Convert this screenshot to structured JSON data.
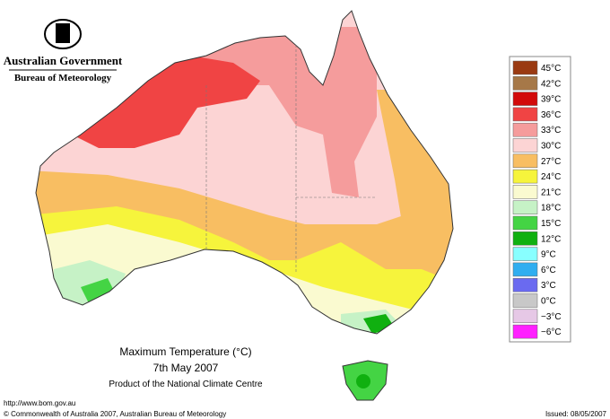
{
  "header": {
    "government": "Australian Government",
    "bureau": "Bureau of Meteorology"
  },
  "map": {
    "title": "Maximum Temperature (°C)",
    "date": "7th May 2007",
    "product": "Product of the National Climate Centre"
  },
  "legend": {
    "items": [
      {
        "label": "45°C",
        "color": "#9a3a12"
      },
      {
        "label": "42°C",
        "color": "#a67848"
      },
      {
        "label": "39°C",
        "color": "#d20a0a"
      },
      {
        "label": "36°C",
        "color": "#f04444"
      },
      {
        "label": "33°C",
        "color": "#f59c9c"
      },
      {
        "label": "30°C",
        "color": "#fcd4d4"
      },
      {
        "label": "27°C",
        "color": "#f8be62"
      },
      {
        "label": "24°C",
        "color": "#f6f43c"
      },
      {
        "label": "21°C",
        "color": "#fafad0"
      },
      {
        "label": "18°C",
        "color": "#c6f2c6"
      },
      {
        "label": "15°C",
        "color": "#44d444"
      },
      {
        "label": "12°C",
        "color": "#10b010"
      },
      {
        "label": "9°C",
        "color": "#88ffff"
      },
      {
        "label": "6°C",
        "color": "#30aef0"
      },
      {
        "label": "3°C",
        "color": "#6a6af0"
      },
      {
        "label": "0°C",
        "color": "#c8c8c8"
      },
      {
        "label": "−3°C",
        "color": "#e6c8e6"
      },
      {
        "label": "−6°C",
        "color": "#ff20ff"
      }
    ]
  },
  "footer": {
    "url": "http://www.bom.gov.au",
    "copyright": "© Commonwealth of Australia 2007, Australian Bureau of Meteorology",
    "issued": "Issued: 08/05/2007"
  }
}
